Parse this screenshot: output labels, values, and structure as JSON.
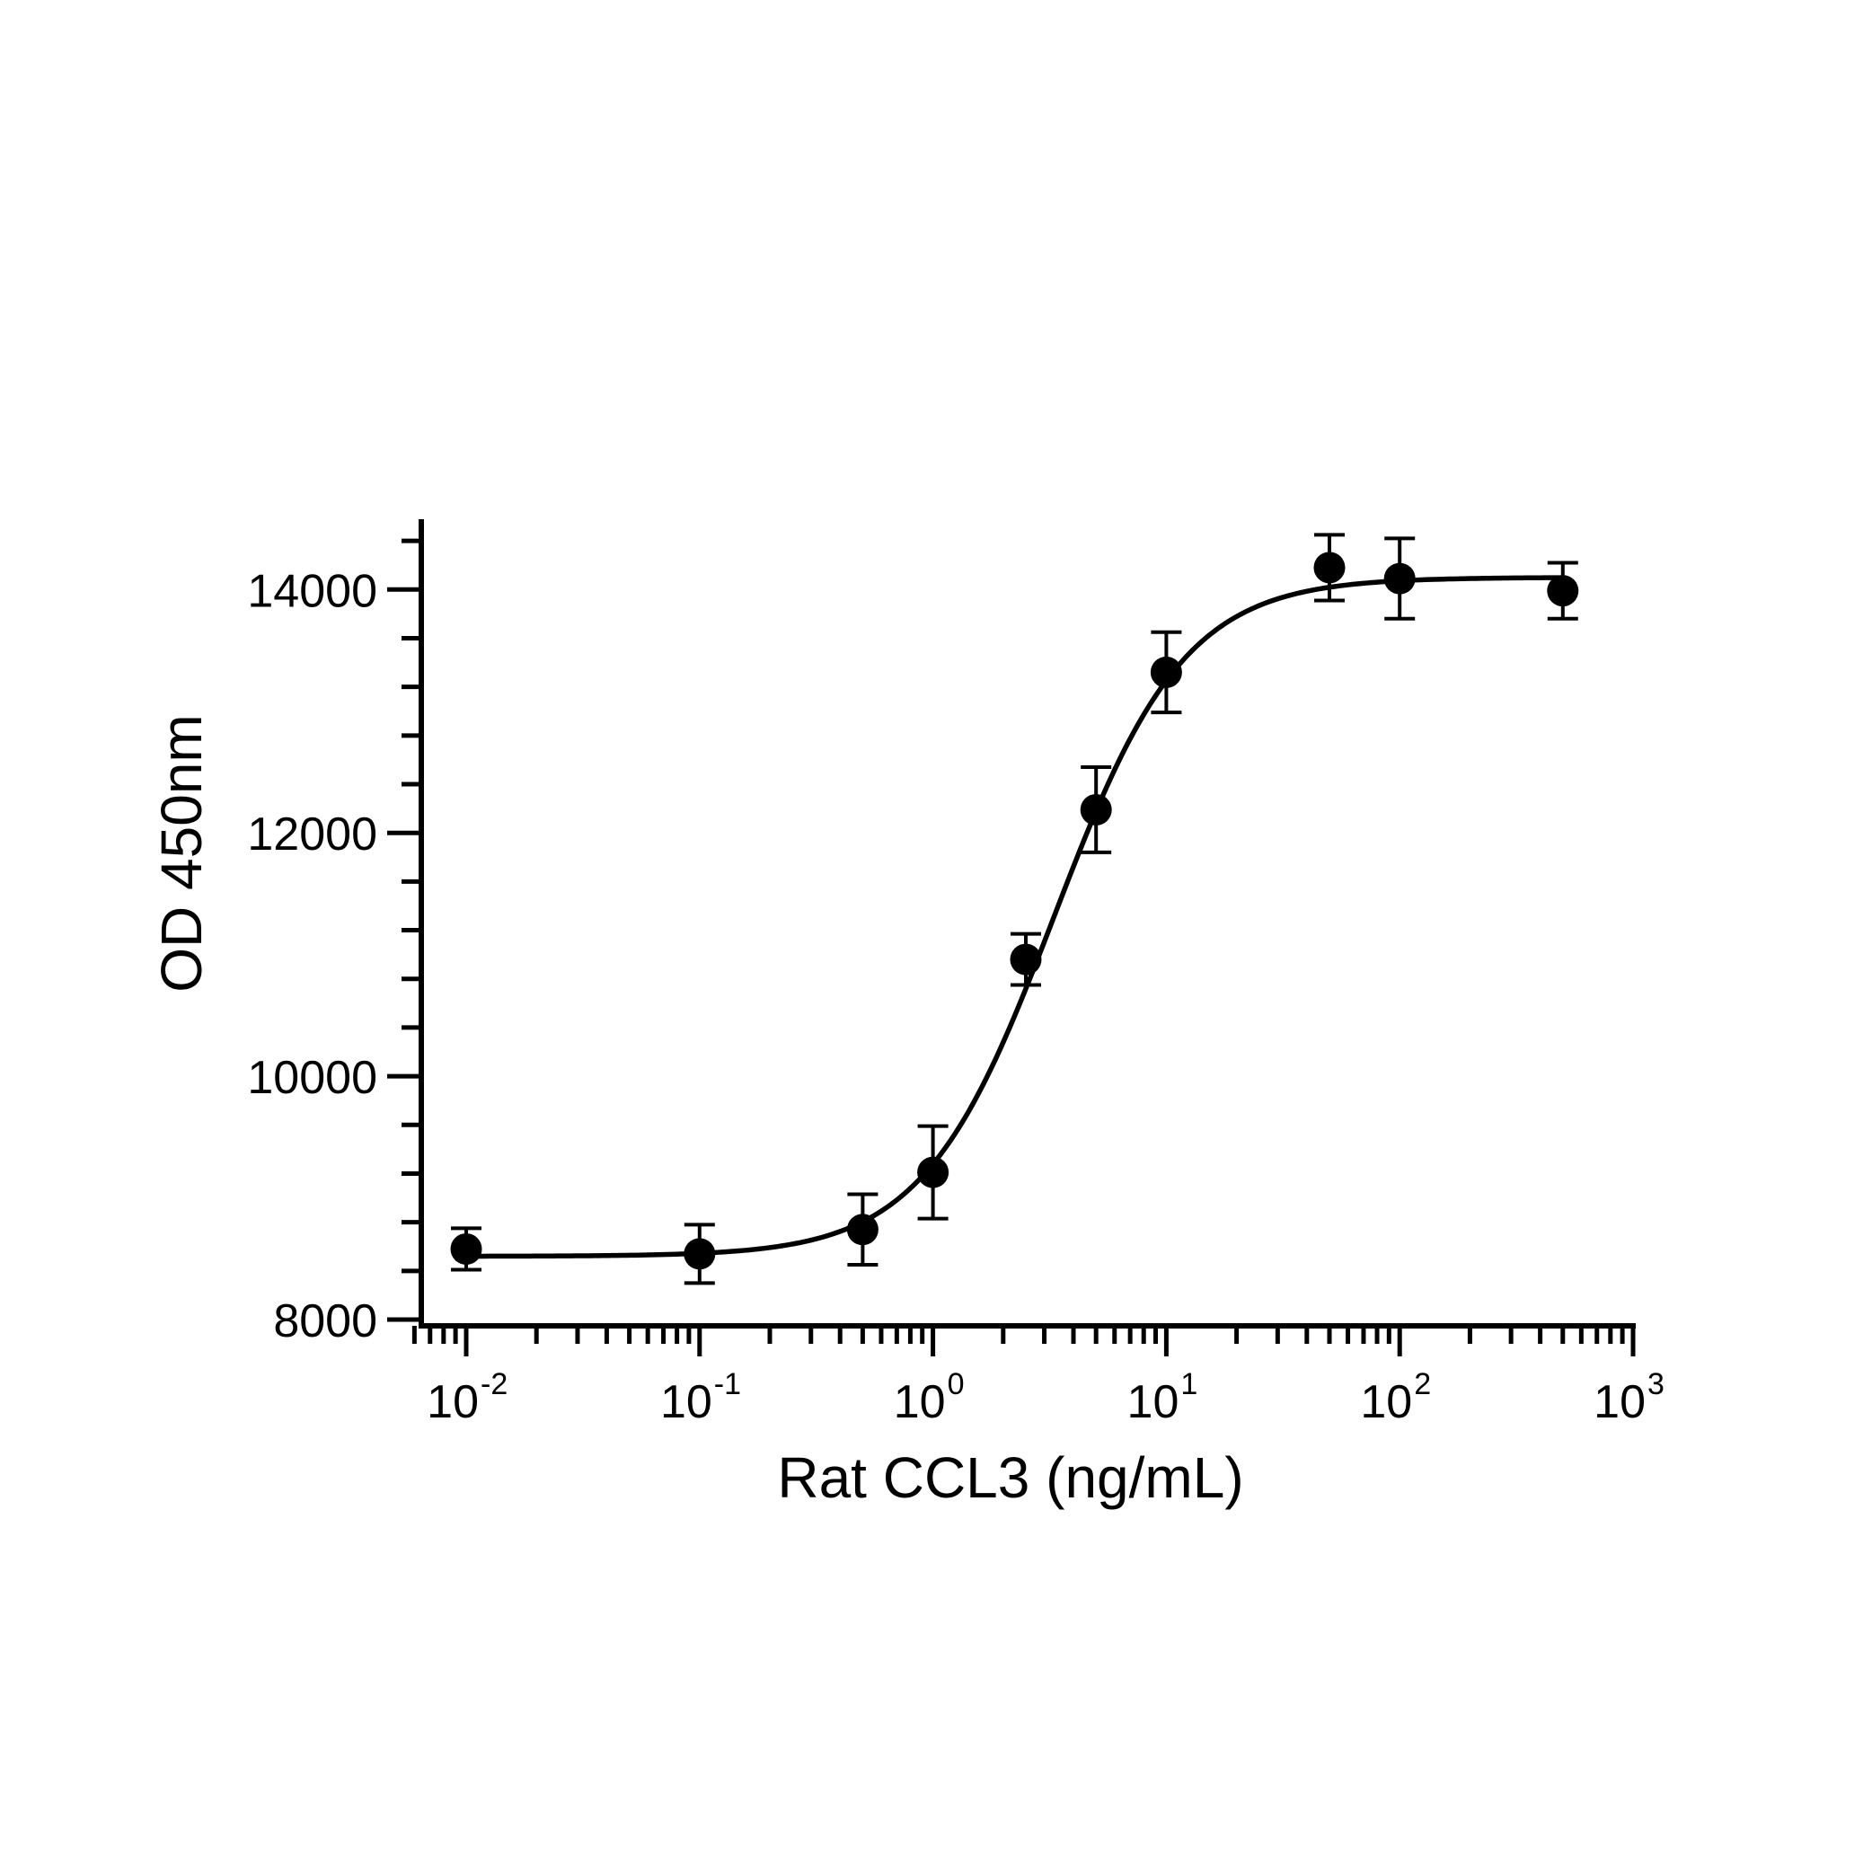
{
  "chart_data": {
    "type": "scatter",
    "xlabel": "Rat CCL3 (ng/mL)",
    "ylabel": "OD 450nm",
    "x_scale": "log10",
    "xlim": [
      0.00562,
      1000
    ],
    "ylim": [
      8000,
      14600
    ],
    "x_tick_labels": [
      {
        "value": 0.01,
        "base": "10",
        "exp": "-2"
      },
      {
        "value": 0.1,
        "base": "10",
        "exp": "-1"
      },
      {
        "value": 1,
        "base": "10",
        "exp": "0"
      },
      {
        "value": 10,
        "base": "10",
        "exp": "1"
      },
      {
        "value": 100,
        "base": "10",
        "exp": "2"
      },
      {
        "value": 1000,
        "base": "10",
        "exp": "3"
      }
    ],
    "y_tick_labels": [
      "8000",
      "10000",
      "12000",
      "14000"
    ],
    "y_major_ticks": [
      8000,
      10000,
      12000,
      14000
    ],
    "y_minor_step": 400,
    "points": [
      {
        "x": 0.01,
        "y": 8580,
        "err": 170
      },
      {
        "x": 0.1,
        "y": 8540,
        "err": 240
      },
      {
        "x": 0.5,
        "y": 8740,
        "err": 290
      },
      {
        "x": 1,
        "y": 9210,
        "err": 380
      },
      {
        "x": 2.5,
        "y": 10960,
        "err": 210
      },
      {
        "x": 5,
        "y": 12190,
        "err": 350
      },
      {
        "x": 10,
        "y": 13320,
        "err": 330
      },
      {
        "x": 50,
        "y": 14180,
        "err": 270
      },
      {
        "x": 100,
        "y": 14090,
        "err": 330
      },
      {
        "x": 500,
        "y": 13990,
        "err": 230
      }
    ],
    "fit": {
      "model": "four-parameter logistic",
      "bottom": 8520,
      "top": 14100,
      "ec50": 3.3,
      "hill": 1.55,
      "x_range": [
        0.01,
        500
      ]
    },
    "grid": false,
    "legend": "none"
  }
}
